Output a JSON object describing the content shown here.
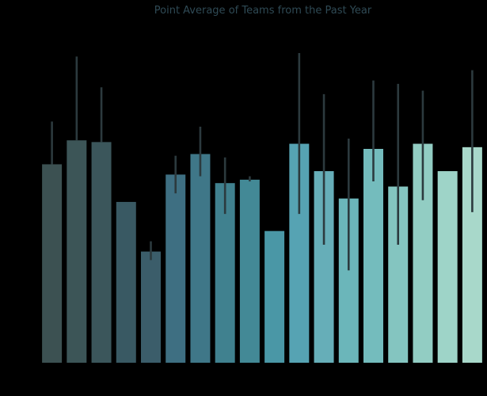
{
  "chart_data": {
    "type": "bar",
    "title": "Point Average of Teams from the Past Year",
    "xlabel": "",
    "ylabel": "",
    "categories": [
      "",
      "",
      "",
      "",
      "",
      "",
      "",
      "",
      "",
      "",
      "",
      "",
      "",
      "",
      "",
      "",
      "",
      ""
    ],
    "values": [
      0.58,
      0.65,
      0.645,
      0.47,
      0.325,
      0.55,
      0.61,
      0.525,
      0.535,
      0.385,
      0.64,
      0.56,
      0.48,
      0.625,
      0.515,
      0.64,
      0.56,
      0.63
    ],
    "error_low": [
      0.58,
      0.65,
      0.645,
      0.47,
      0.3,
      0.495,
      0.545,
      0.435,
      0.53,
      0.385,
      0.435,
      0.345,
      0.27,
      0.53,
      0.345,
      0.475,
      0.56,
      0.44
    ],
    "error_high": [
      0.705,
      0.895,
      0.805,
      0.47,
      0.355,
      0.605,
      0.69,
      0.6,
      0.545,
      0.385,
      0.905,
      0.785,
      0.655,
      0.825,
      0.815,
      0.795,
      0.56,
      0.855
    ],
    "ylim": [
      0,
      1
    ],
    "grid": false,
    "legend": "none",
    "colors": [
      "#3c5152",
      "#3c5557",
      "#3b565b",
      "#395963",
      "#3b5d6a",
      "#3e6f82",
      "#3f7788",
      "#40818f",
      "#438996",
      "#4a97a6",
      "#56a3b3",
      "#66aeb8",
      "#6bb6ba",
      "#74bcbd",
      "#84c5c0",
      "#92cdc3",
      "#9ed4c8",
      "#a8d8ca"
    ],
    "error_color": "#2c3a3e",
    "background": "#000000"
  }
}
